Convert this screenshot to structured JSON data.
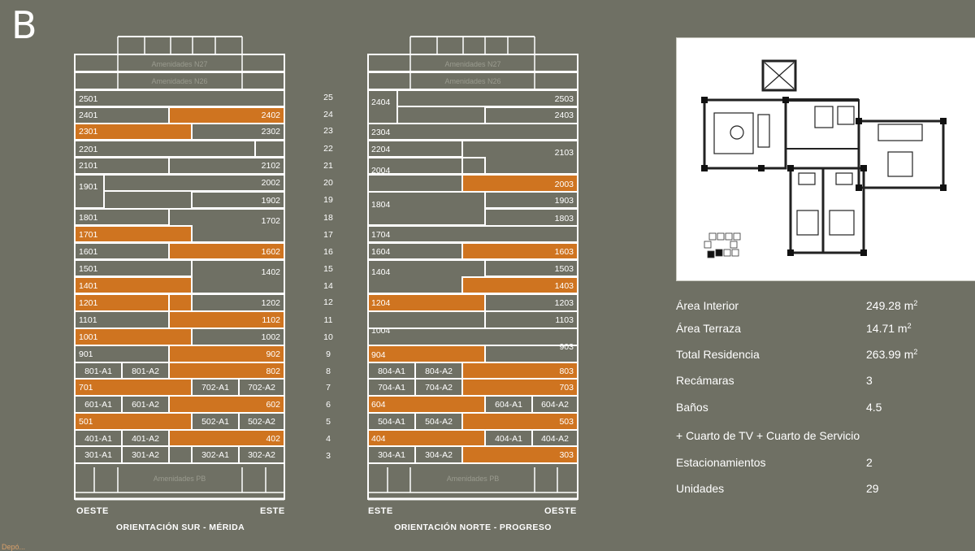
{
  "tower_letter": "B",
  "colors": {
    "background": "#6f7064",
    "highlight": "#cf7420",
    "line": "#ffffff"
  },
  "amenities": {
    "n27": "Amenidades N27",
    "n26": "Amenidades N26",
    "pb": "Amenidades PB"
  },
  "floor_numbers": [
    "25",
    "24",
    "23",
    "22",
    "21",
    "20",
    "19",
    "18",
    "17",
    "16",
    "15",
    "14",
    "12",
    "11",
    "10",
    "9",
    "8",
    "7",
    "6",
    "5",
    "4",
    "3"
  ],
  "left_building": {
    "caption": "ORIENTACIÓN SUR - MÉRIDA",
    "left_orientation": "OESTE",
    "right_orientation": "ESTE"
  },
  "right_building": {
    "caption": "ORIENTACIÓN NORTE - PROGRESO",
    "left_orientation": "ESTE",
    "right_orientation": "OESTE"
  },
  "specs": [
    {
      "label": "Área Interior",
      "value": "249.28 m",
      "sup": "2"
    },
    {
      "label": "Área Terraza",
      "value": "14.71 m",
      "sup": "2"
    },
    {
      "label": "Total Residencia",
      "value": "263.99 m",
      "sup": "2"
    },
    {
      "label": "Recámaras",
      "value": "3",
      "sup": ""
    },
    {
      "label": "Baños",
      "value": "4.5",
      "sup": ""
    },
    {
      "label": "+  Cuarto de TV + Cuarto de Servicio",
      "value": "",
      "sup": ""
    },
    {
      "label": "Estacionamientos",
      "value": "2",
      "sup": ""
    },
    {
      "label": "Unidades",
      "value": "29",
      "sup": ""
    }
  ],
  "footer": "Depó...",
  "unit_labels": {
    "left": [
      "2501",
      "2401",
      "2402",
      "2301",
      "2302",
      "2201",
      "2101",
      "2102",
      "1901",
      "2002",
      "1902",
      "1801",
      "1702",
      "1701",
      "1601",
      "1602",
      "1501",
      "1402",
      "1401",
      "1201",
      "1202",
      "1101",
      "1102",
      "1001",
      "1002",
      "901",
      "902",
      "801-A1",
      "801-A2",
      "802",
      "701",
      "702-A1",
      "702-A2",
      "601-A1",
      "601-A2",
      "602",
      "501",
      "502-A1",
      "502-A2",
      "401-A1",
      "401-A2",
      "402",
      "301-A1",
      "301-A2",
      "302-A1",
      "302-A2"
    ],
    "right": [
      "2404",
      "2503",
      "2403",
      "2304",
      "2204",
      "2103",
      "2004",
      "2003",
      "1804",
      "1903",
      "1803",
      "1704",
      "1604",
      "1603",
      "1404",
      "1503",
      "1403",
      "1204",
      "1203",
      "1103",
      "1004",
      "903",
      "904",
      "804-A1",
      "804-A2",
      "803",
      "704-A1",
      "704-A2",
      "703",
      "604",
      "604-A1",
      "604-A2",
      "504-A1",
      "504-A2",
      "503",
      "404",
      "404-A1",
      "404-A2",
      "304-A1",
      "304-A2",
      "303"
    ]
  }
}
